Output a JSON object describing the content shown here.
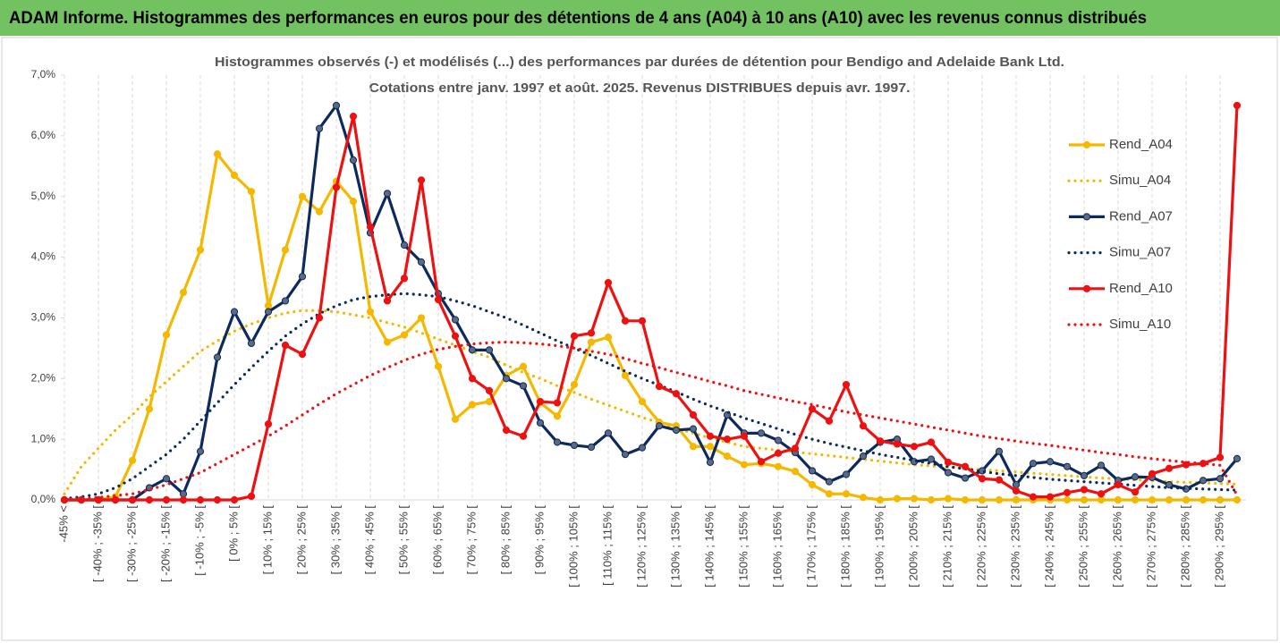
{
  "header": {
    "title": "ADAM Informe. Histogrammes des performances en euros pour des détentions de 4 ans (A04) à 10 ans (A10) avec les revenus connus distribués"
  },
  "chart_data": {
    "type": "line",
    "title": [
      "Histogrammes observés (-) et modélisés (...) des performances par durées de détention pour Bendigo and Adelaide Bank Ltd.",
      "Cotations entre janv. 1997 et août. 2025. Revenus DISTRIBUES depuis avr. 1997."
    ],
    "categories": [
      "-45% <",
      null,
      "[ -40% ; -35% [",
      null,
      "[ -30% ; -25% [",
      null,
      "[ -20% ; -15% [",
      null,
      "[ -10% ; -5% [",
      null,
      "[ 0% ; 5% [",
      null,
      "[ 10% ; 15% [",
      null,
      "[ 20% ; 25% [",
      null,
      "[ 30% ; 35% [",
      null,
      "[ 40% ; 45% [",
      null,
      "[ 50% ; 55% [",
      null,
      "[ 60% ; 65% [",
      null,
      "[ 70% ; 75% [",
      null,
      "[ 80% ; 85% [",
      null,
      "[ 90% ; 95% [",
      null,
      "[ 100% ; 105% [",
      null,
      "[ 110% ; 115% [",
      null,
      "[ 120% ; 125% [",
      null,
      "[ 130% ; 135% [",
      null,
      "[ 140% ; 145% [",
      null,
      "[ 150% ; 155% [",
      null,
      "[ 160% ; 165% [",
      null,
      "[ 170% ; 175% [",
      null,
      "[ 180% ; 185% [",
      null,
      "[ 190% ; 195% [",
      null,
      "[ 200% ; 205% [",
      null,
      "[ 210% ; 215% [",
      null,
      "[ 220% ; 225% [",
      null,
      "[ 230% ; 235% [",
      null,
      "[ 240% ; 245% [",
      null,
      "[ 250% ; 255% [",
      null,
      "[ 260% ; 265% [",
      null,
      "[ 270% ; 275% [",
      null,
      "[ 280% ; 285% [",
      null,
      "[ 290% ; 295% [",
      null
    ],
    "series": [
      {
        "name": "Rend_A04",
        "color": "#f5b800",
        "marker": true,
        "dash": "solid",
        "values": [
          0,
          0,
          0,
          0.05,
          0.65,
          1.5,
          2.72,
          3.42,
          4.12,
          5.7,
          5.35,
          5.08,
          3.2,
          4.12,
          5.0,
          4.75,
          5.25,
          4.92,
          3.1,
          2.6,
          2.72,
          3.0,
          2.2,
          1.33,
          1.57,
          1.62,
          2.05,
          2.2,
          1.6,
          1.38,
          1.9,
          2.6,
          2.68,
          2.05,
          1.62,
          1.28,
          1.22,
          0.88,
          0.88,
          0.72,
          0.58,
          0.6,
          0.55,
          0.47,
          0.25,
          0.1,
          0.1,
          0.04,
          0,
          0.02,
          0.02,
          0,
          0.02,
          0,
          0,
          0,
          0,
          0,
          0,
          0,
          0,
          0,
          0,
          0,
          0,
          0,
          0,
          0,
          0,
          0
        ]
      },
      {
        "name": "Simu_A04",
        "color": "#f5b800",
        "marker": false,
        "dash": "dotted",
        "values": [
          0.1,
          0.55,
          0.85,
          1.15,
          1.4,
          1.7,
          1.95,
          2.2,
          2.45,
          2.62,
          2.78,
          2.9,
          3.0,
          3.08,
          3.12,
          3.12,
          3.1,
          3.05,
          3.0,
          2.92,
          2.85,
          2.75,
          2.65,
          2.55,
          2.45,
          2.35,
          2.22,
          2.1,
          2.0,
          1.88,
          1.77,
          1.66,
          1.56,
          1.46,
          1.36,
          1.27,
          1.18,
          1.1,
          1.02,
          0.95,
          0.88,
          0.85,
          0.82,
          0.79,
          0.76,
          0.73,
          0.7,
          0.67,
          0.64,
          0.61,
          0.58,
          0.56,
          0.54,
          0.52,
          0.5,
          0.48,
          0.46,
          0.44,
          0.42,
          0.4,
          0.38,
          0.36,
          0.35,
          0.33,
          0.32,
          0.3,
          0.29,
          0.28,
          0.27,
          0.26
        ]
      },
      {
        "name": "Rend_A07",
        "color": "#0d2a5e",
        "marker": true,
        "dash": "solid",
        "values": [
          0,
          0,
          0,
          0,
          0,
          0.2,
          0.35,
          0.1,
          0.8,
          2.35,
          3.1,
          2.58,
          3.1,
          3.28,
          3.68,
          6.12,
          6.5,
          5.6,
          4.4,
          5.05,
          4.2,
          3.92,
          3.4,
          2.97,
          2.47,
          2.47,
          2.0,
          1.88,
          1.27,
          0.95,
          0.9,
          0.87,
          1.1,
          0.75,
          0.86,
          1.22,
          1.15,
          1.17,
          0.62,
          1.4,
          1.1,
          1.1,
          0.98,
          0.78,
          0.48,
          0.3,
          0.42,
          0.72,
          0.95,
          1.0,
          0.63,
          0.67,
          0.45,
          0.36,
          0.48,
          0.8,
          0.25,
          0.6,
          0.63,
          0.55,
          0.4,
          0.57,
          0.32,
          0.38,
          0.37,
          0.25,
          0.18,
          0.32,
          0.35,
          0.68
        ]
      },
      {
        "name": "Simu_A07",
        "color": "#0d2a5e",
        "marker": false,
        "dash": "dotted",
        "values": [
          0.02,
          0.05,
          0.1,
          0.2,
          0.35,
          0.55,
          0.75,
          1.0,
          1.3,
          1.6,
          1.9,
          2.18,
          2.45,
          2.7,
          2.9,
          3.07,
          3.2,
          3.3,
          3.35,
          3.38,
          3.4,
          3.38,
          3.35,
          3.28,
          3.2,
          3.1,
          3.0,
          2.88,
          2.75,
          2.62,
          2.5,
          2.38,
          2.25,
          2.12,
          2.0,
          1.89,
          1.78,
          1.66,
          1.55,
          1.45,
          1.35,
          1.26,
          1.17,
          1.08,
          1.0,
          0.93,
          0.87,
          0.81,
          0.75,
          0.7,
          0.65,
          0.6,
          0.55,
          0.51,
          0.47,
          0.43,
          0.4,
          0.37,
          0.34,
          0.32,
          0.3,
          0.28,
          0.26,
          0.24,
          0.22,
          0.2,
          0.19,
          0.18,
          0.17,
          0.16
        ]
      },
      {
        "name": "Rend_A10",
        "color": "#ee1111",
        "marker": true,
        "dash": "solid",
        "values": [
          0,
          0,
          0,
          0,
          0,
          0,
          0,
          0,
          0,
          0,
          0,
          0.06,
          1.25,
          2.55,
          2.4,
          3.0,
          5.15,
          6.32,
          4.5,
          3.28,
          3.65,
          5.27,
          3.3,
          2.7,
          2.0,
          1.8,
          1.15,
          1.05,
          1.62,
          1.6,
          2.7,
          2.75,
          3.58,
          2.95,
          2.95,
          1.87,
          1.75,
          1.4,
          1.05,
          1.0,
          1.05,
          0.63,
          0.77,
          0.85,
          1.5,
          1.3,
          1.9,
          1.22,
          0.97,
          0.92,
          0.88,
          0.95,
          0.62,
          0.55,
          0.35,
          0.33,
          0.15,
          0.05,
          0.05,
          0.12,
          0.17,
          0.1,
          0.25,
          0.13,
          0.43,
          0.52,
          0.58,
          0.6,
          0.7,
          6.5
        ]
      },
      {
        "name": "Simu_A10",
        "color": "#ee1111",
        "marker": false,
        "dash": "dotted",
        "values": [
          0,
          0.02,
          0.04,
          0.07,
          0.1,
          0.17,
          0.25,
          0.35,
          0.45,
          0.6,
          0.75,
          0.9,
          1.05,
          1.22,
          1.4,
          1.58,
          1.75,
          1.9,
          2.05,
          2.18,
          2.3,
          2.4,
          2.48,
          2.53,
          2.57,
          2.59,
          2.6,
          2.59,
          2.57,
          2.54,
          2.5,
          2.45,
          2.4,
          2.33,
          2.25,
          2.18,
          2.1,
          2.03,
          1.95,
          1.88,
          1.8,
          1.74,
          1.68,
          1.62,
          1.57,
          1.51,
          1.45,
          1.4,
          1.35,
          1.3,
          1.25,
          1.2,
          1.15,
          1.1,
          1.05,
          1.01,
          0.97,
          0.93,
          0.9,
          0.86,
          0.82,
          0.78,
          0.75,
          0.71,
          0.68,
          0.65,
          0.62,
          0.6,
          0.57,
          0.08
        ]
      }
    ],
    "ylim": [
      0,
      7
    ],
    "yticks": [
      {
        "value": 0,
        "label": "0,0%"
      },
      {
        "value": 1,
        "label": "1,0%"
      },
      {
        "value": 2,
        "label": "2,0%"
      },
      {
        "value": 3,
        "label": "3,0%"
      },
      {
        "value": 4,
        "label": "4,0%"
      },
      {
        "value": 5,
        "label": "5,0%"
      },
      {
        "value": 6,
        "label": "6,0%"
      },
      {
        "value": 7,
        "label": "7,0%"
      }
    ],
    "grid": true,
    "legend": "right"
  }
}
